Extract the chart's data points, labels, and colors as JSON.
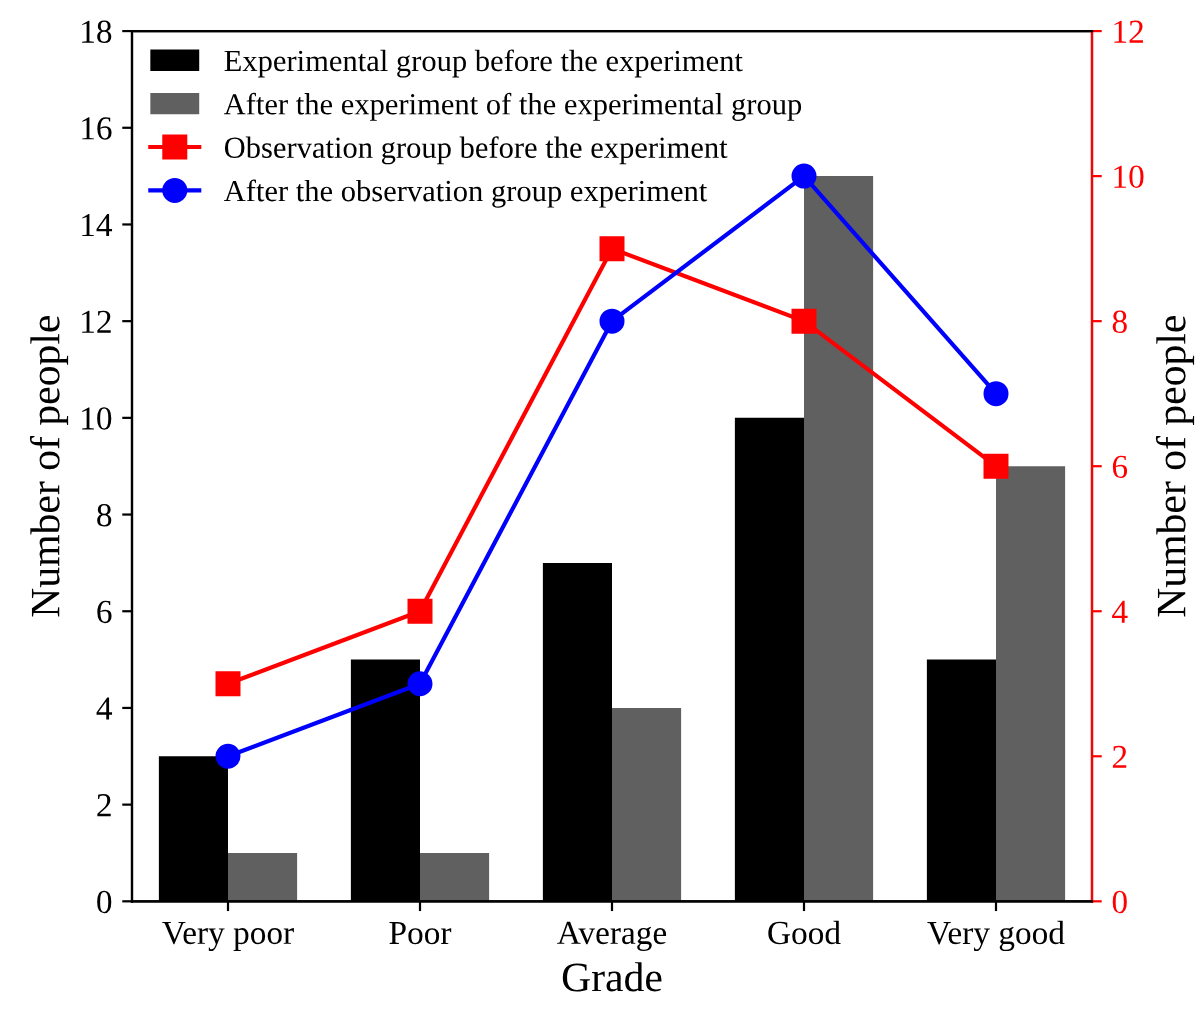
{
  "chart_data": {
    "type": "bar",
    "xlabel": "Grade",
    "ylabel": "Number of people",
    "y2label": "Number of people",
    "categories": [
      "Very poor",
      "Poor",
      "Average",
      "Good",
      "Very good"
    ],
    "series": [
      {
        "name": "Experimental group before the experiment",
        "color": "#000000",
        "values": [
          3,
          5,
          7,
          10,
          5
        ]
      },
      {
        "name": "After the experiment of the experimental group",
        "color": "#606060",
        "values": [
          1,
          1,
          4,
          15,
          9
        ]
      },
      {
        "name": "Observation group before the experiment",
        "type": "line",
        "axis": "y2",
        "marker": "square",
        "color": "#ff0000",
        "values": [
          3,
          4,
          9,
          8,
          6
        ]
      },
      {
        "name": "After the observation group experiment",
        "type": "line",
        "axis": "y2",
        "marker": "circle",
        "color": "#0000ff",
        "values": [
          2,
          3,
          8,
          10,
          7
        ]
      }
    ],
    "ylim": [
      0,
      18
    ],
    "yticks": [
      0,
      2,
      4,
      6,
      8,
      10,
      12,
      14,
      16,
      18
    ],
    "y2lim": [
      0,
      12
    ],
    "y2ticks": [
      0,
      2,
      4,
      6,
      8,
      10,
      12
    ],
    "grid": false,
    "legend": "top left",
    "line_style": "solid"
  }
}
